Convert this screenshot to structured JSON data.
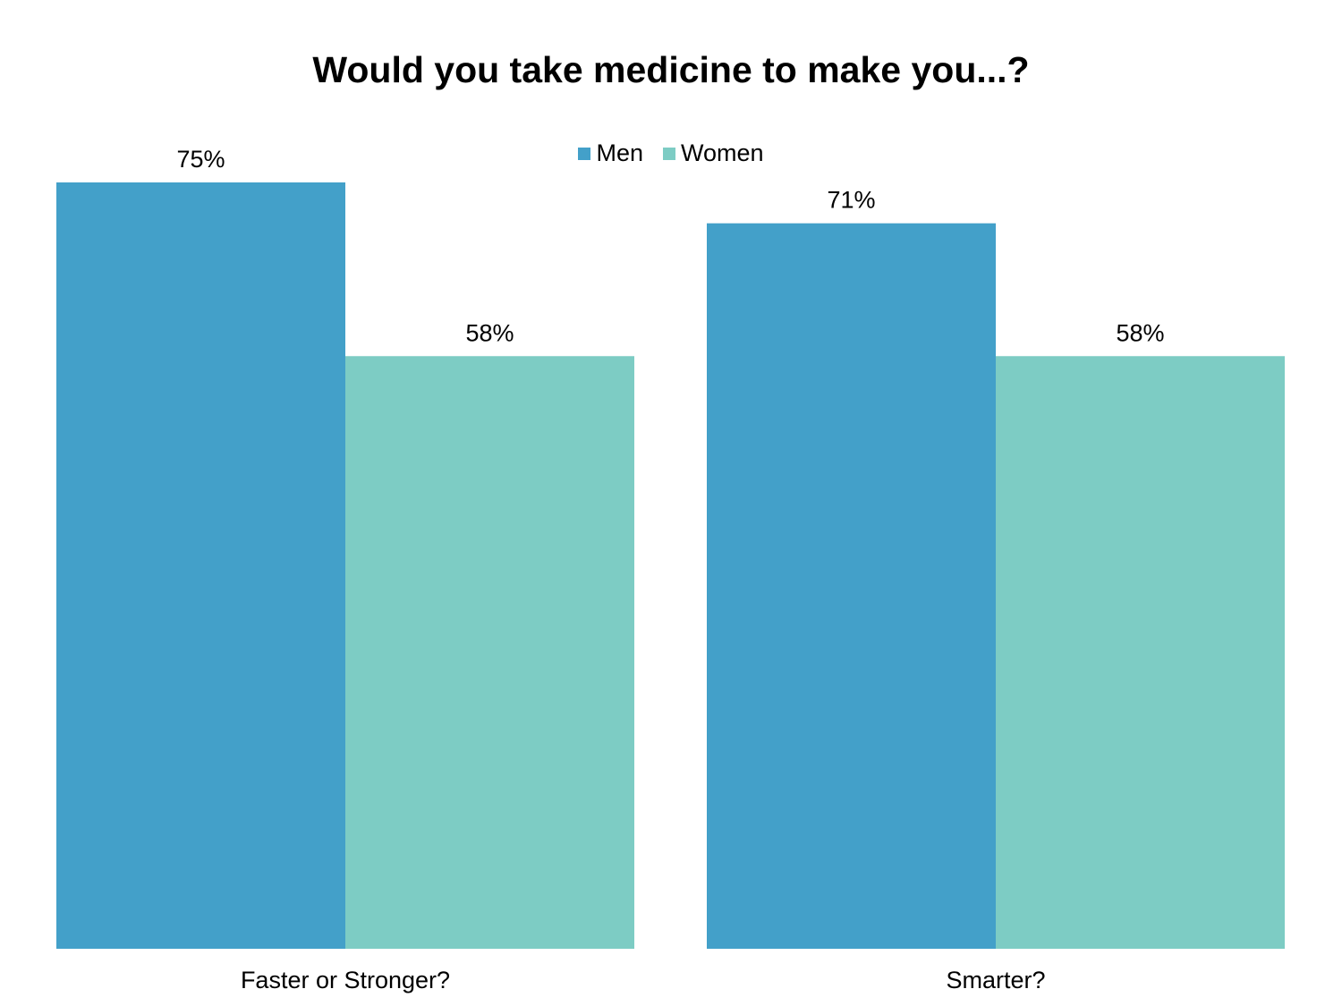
{
  "chart_data": {
    "type": "bar",
    "title": "Would you take medicine to make you...?",
    "categories": [
      "Faster or Stronger?",
      "Smarter?"
    ],
    "series": [
      {
        "name": "Men",
        "color": "#43a0c9",
        "values": [
          75,
          71
        ],
        "labels": [
          "75%",
          "71%"
        ]
      },
      {
        "name": "Women",
        "color": "#7dccc4",
        "values": [
          58,
          58
        ],
        "labels": [
          "58%",
          "58%"
        ]
      }
    ],
    "ylim": [
      0,
      75
    ],
    "grid": false,
    "legend_position": "top-center"
  }
}
